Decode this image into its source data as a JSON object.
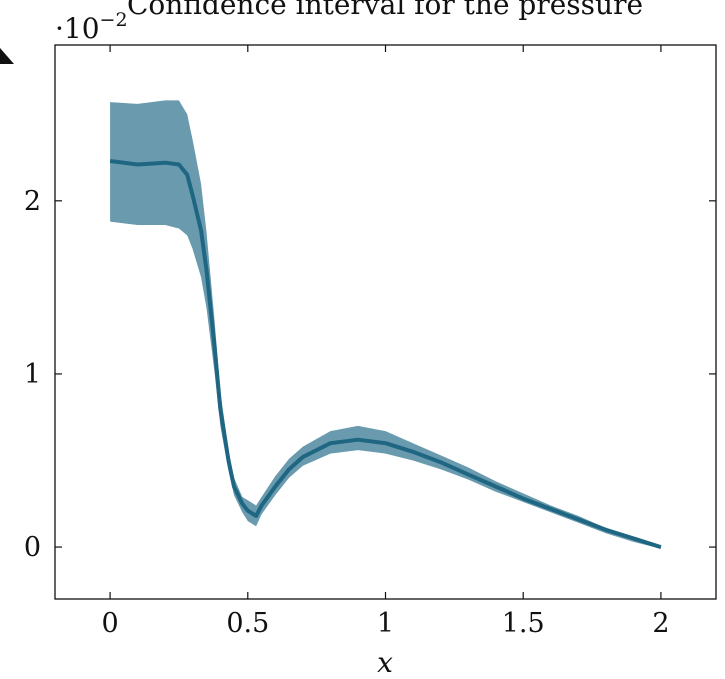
{
  "chart_data": {
    "type": "area",
    "title": "Confidence interval for the pressure",
    "xlabel": "x",
    "ylabel": "",
    "y_scale_note": "·10",
    "y_scale_exponent": "−2",
    "xlim": [
      -0.2,
      2.2
    ],
    "ylim": [
      -0.3,
      2.9
    ],
    "x_ticks": [
      0,
      0.5,
      1,
      1.5,
      2
    ],
    "x_tick_labels": [
      "0",
      "0.5",
      "1",
      "1.5",
      "2"
    ],
    "y_ticks": [
      0,
      1,
      2
    ],
    "y_tick_labels": [
      "0",
      "1",
      "2"
    ],
    "grid": false,
    "legend": "none",
    "colors": {
      "mean": "#1f6682",
      "band": "#6a9aae"
    },
    "series": [
      {
        "role": "mean",
        "x": [
          0,
          0.1,
          0.2,
          0.25,
          0.28,
          0.3,
          0.33,
          0.35,
          0.38,
          0.4,
          0.43,
          0.45,
          0.48,
          0.5,
          0.53,
          0.55,
          0.6,
          0.65,
          0.7,
          0.8,
          0.9,
          1.0,
          1.1,
          1.2,
          1.3,
          1.4,
          1.5,
          1.6,
          1.7,
          1.8,
          1.9,
          2.0
        ],
        "values": [
          2.23,
          2.21,
          2.22,
          2.21,
          2.15,
          2.03,
          1.83,
          1.6,
          1.15,
          0.8,
          0.5,
          0.35,
          0.25,
          0.21,
          0.18,
          0.24,
          0.35,
          0.45,
          0.52,
          0.6,
          0.62,
          0.6,
          0.55,
          0.49,
          0.42,
          0.35,
          0.28,
          0.22,
          0.16,
          0.1,
          0.05,
          0.0
        ]
      },
      {
        "role": "upper",
        "x": [
          0,
          0.1,
          0.2,
          0.25,
          0.28,
          0.3,
          0.33,
          0.35,
          0.38,
          0.4,
          0.43,
          0.45,
          0.48,
          0.5,
          0.53,
          0.55,
          0.6,
          0.65,
          0.7,
          0.8,
          0.9,
          1.0,
          1.1,
          1.2,
          1.3,
          1.4,
          1.5,
          1.6,
          1.7,
          1.8,
          1.9,
          2.0
        ],
        "values": [
          2.57,
          2.56,
          2.58,
          2.58,
          2.5,
          2.35,
          2.1,
          1.82,
          1.3,
          0.9,
          0.56,
          0.4,
          0.29,
          0.27,
          0.24,
          0.29,
          0.41,
          0.51,
          0.58,
          0.67,
          0.7,
          0.67,
          0.6,
          0.53,
          0.46,
          0.38,
          0.31,
          0.24,
          0.18,
          0.11,
          0.06,
          0.01
        ]
      },
      {
        "role": "lower",
        "x": [
          0,
          0.1,
          0.2,
          0.25,
          0.28,
          0.3,
          0.33,
          0.35,
          0.38,
          0.4,
          0.43,
          0.45,
          0.48,
          0.5,
          0.53,
          0.55,
          0.6,
          0.65,
          0.7,
          0.8,
          0.9,
          1.0,
          1.1,
          1.2,
          1.3,
          1.4,
          1.5,
          1.6,
          1.7,
          1.8,
          1.9,
          2.0
        ],
        "values": [
          1.88,
          1.86,
          1.86,
          1.84,
          1.8,
          1.72,
          1.56,
          1.38,
          1.0,
          0.7,
          0.44,
          0.3,
          0.2,
          0.15,
          0.12,
          0.19,
          0.3,
          0.4,
          0.47,
          0.54,
          0.56,
          0.54,
          0.5,
          0.45,
          0.39,
          0.32,
          0.26,
          0.2,
          0.14,
          0.08,
          0.03,
          -0.01
        ]
      }
    ]
  }
}
